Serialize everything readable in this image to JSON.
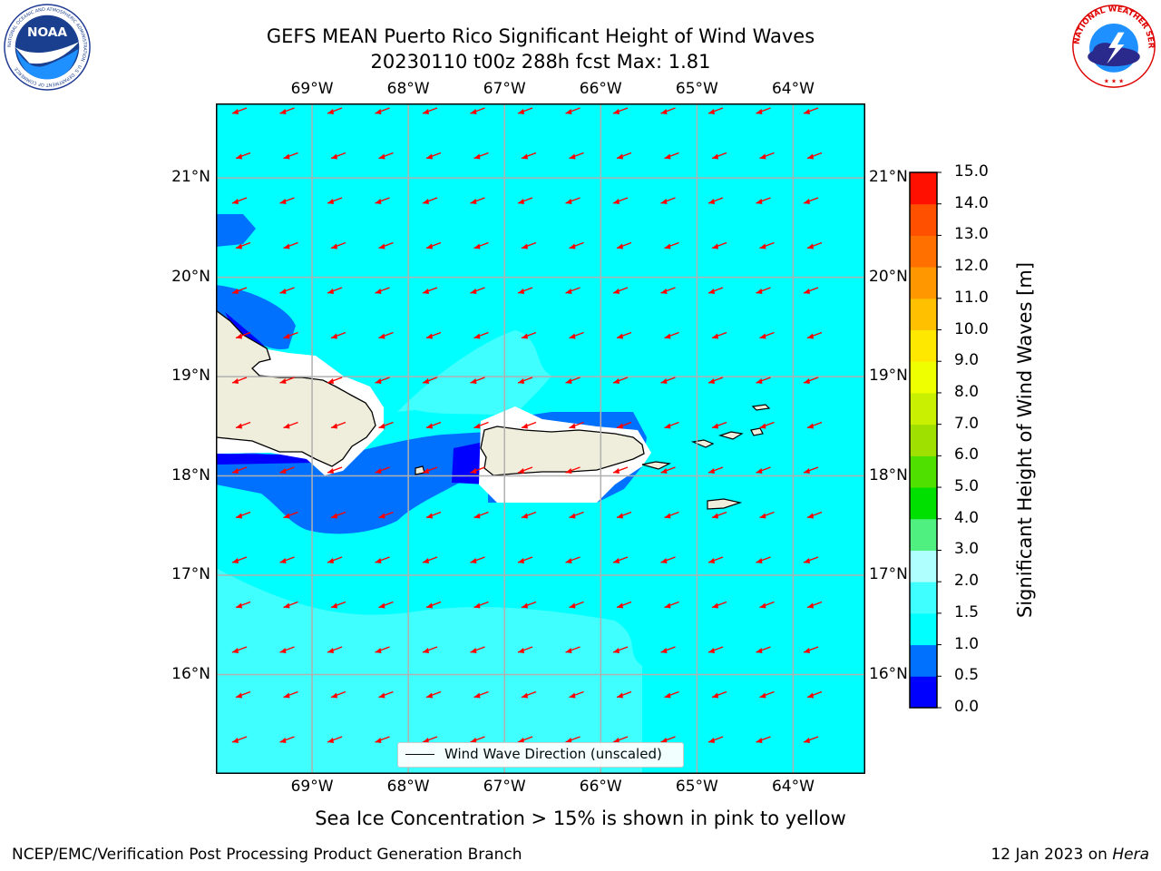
{
  "title": {
    "line1": "GEFS MEAN Puerto Rico Significant Height of Wind Waves",
    "line2": "20230110 t00z 288h fcst   Max: 1.81"
  },
  "logos": {
    "left": {
      "name": "NOAA",
      "wordmark": "NOAA",
      "ring_text": "NATIONAL OCEANIC AND ATMOSPHERIC ADMINISTRATION · U.S. DEPARTMENT OF COMMERCE"
    },
    "right": {
      "name": "National Weather Service",
      "ring_text": "NATIONAL WEATHER SERVICE"
    }
  },
  "map": {
    "lon_range": [
      -70.0,
      -63.25
    ],
    "lat_range": [
      15.0,
      21.75
    ],
    "lon_labels": [
      "69°W",
      "68°W",
      "67°W",
      "66°W",
      "65°W",
      "64°W"
    ],
    "lat_labels": [
      "21°N",
      "20°N",
      "19°N",
      "18°N",
      "17°N",
      "16°N"
    ],
    "gridlines": true,
    "ocean_color": "#00ffff",
    "land_color": "#efeedc",
    "arrow_color": "#ff0000",
    "arrow_direction": "toward southwest"
  },
  "legend": {
    "label": "Wind Wave Direction (unscaled)",
    "placement": "lower-center"
  },
  "colorbar": {
    "label": "Significant Height of Wind Waves [m]",
    "ticks": [
      "0.0",
      "0.5",
      "1.0",
      "1.5",
      "2.0",
      "3.0",
      "4.0",
      "5.0",
      "6.0",
      "7.0",
      "8.0",
      "9.0",
      "10.0",
      "11.0",
      "12.0",
      "13.0",
      "14.0",
      "15.0"
    ],
    "colors": [
      "#0000ff",
      "#0070ff",
      "#00ffff",
      "#40ffff",
      "#b0ffff",
      "#50f080",
      "#00e000",
      "#50e000",
      "#a0e000",
      "#c8f000",
      "#f0ff00",
      "#ffe800",
      "#ffc000",
      "#ff9800",
      "#ff7000",
      "#ff5000",
      "#ff1000"
    ]
  },
  "caption": "Sea Ice Concentration > 15% is shown in pink to yellow",
  "footer": {
    "credit": "NCEP/EMC/Verification Post Processing Product Generation Branch",
    "date": "12 Jan 2023 on",
    "machine": "Hera"
  }
}
